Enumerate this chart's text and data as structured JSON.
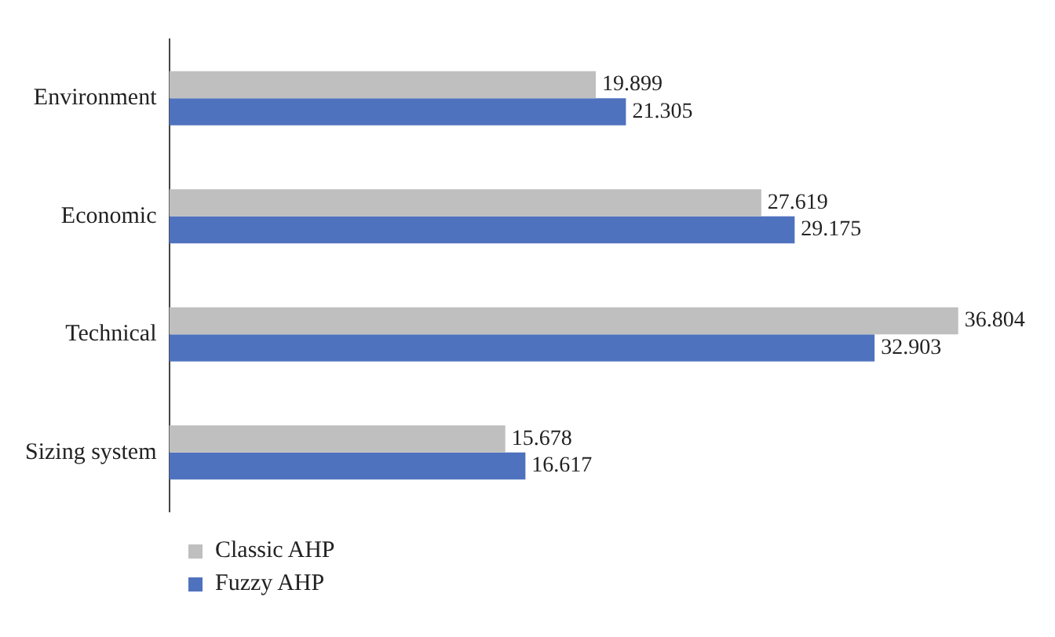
{
  "chart_data": {
    "type": "bar",
    "orientation": "horizontal",
    "categories": [
      "Environment",
      "Economic",
      "Technical",
      "Sizing system"
    ],
    "series": [
      {
        "name": "Classic AHP",
        "color": "#bfbfbf",
        "values": [
          19.899,
          27.619,
          36.804,
          15.678
        ]
      },
      {
        "name": "Fuzzy AHP",
        "color": "#4f72be",
        "values": [
          21.305,
          29.175,
          32.903,
          16.617
        ]
      }
    ],
    "data_labels": true,
    "legend": "bottom left",
    "grid": false
  }
}
